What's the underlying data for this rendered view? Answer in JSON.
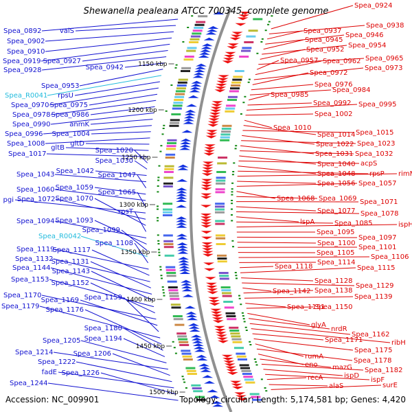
{
  "title": "Shewanella pealeana ATCC 700345, complete genome",
  "accession": "Accession: NC_009901",
  "topology": "Topology: circular; Length: 5,174,581 bp; Genes: 4,420",
  "colors": {
    "left_genes": "#1010d0",
    "right_genes": "#dd0000",
    "rna_genes": "#22bbdd",
    "backbone": "#909090"
  },
  "kbp_marks": [
    "1150 kbp",
    "1200 kbp",
    "1250 kbp",
    "1300 kbp",
    "1350 kbp",
    "1400 kbp",
    "1450 kbp",
    "1500 kbp"
  ],
  "left_labels": [
    {
      "text": "Spea_0892",
      "rna": false
    },
    {
      "text": "valS",
      "rna": false
    },
    {
      "text": "Spea_0902",
      "rna": false
    },
    {
      "text": "Spea_0910",
      "rna": false
    },
    {
      "text": "Spea_0919",
      "rna": false
    },
    {
      "text": "Spea_0927",
      "rna": false
    },
    {
      "text": "Spea_0928",
      "rna": false
    },
    {
      "text": "Spea_0942",
      "rna": false
    },
    {
      "text": "Spea_0953",
      "rna": false
    },
    {
      "text": "Spea_R0041",
      "rna": true
    },
    {
      "text": "rpsU",
      "rna": false
    },
    {
      "text": "Spea_0970",
      "rna": false
    },
    {
      "text": "Spea_0975",
      "rna": false
    },
    {
      "text": "Spea_0978",
      "rna": false
    },
    {
      "text": "Spea_0986",
      "rna": false
    },
    {
      "text": "Spea_0990",
      "rna": false
    },
    {
      "text": "anmK",
      "rna": false
    },
    {
      "text": "Spea_0996",
      "rna": false
    },
    {
      "text": "Spea_1004",
      "rna": false
    },
    {
      "text": "Spea_1008",
      "rna": false
    },
    {
      "text": "gltD",
      "rna": false
    },
    {
      "text": "gltB",
      "rna": false
    },
    {
      "text": "Spea_1017",
      "rna": false
    },
    {
      "text": "Spea_1020",
      "rna": false
    },
    {
      "text": "Spea_1030",
      "rna": false
    },
    {
      "text": "Spea_1042",
      "rna": false
    },
    {
      "text": "Spea_1043",
      "rna": false
    },
    {
      "text": "Spea_1047",
      "rna": false
    },
    {
      "text": "Spea_1059",
      "rna": false
    },
    {
      "text": "Spea_1060",
      "rna": false
    },
    {
      "text": "Spea_1065",
      "rna": false
    },
    {
      "text": "pgi",
      "rna": false
    },
    {
      "text": "Spea_1072",
      "rna": false
    },
    {
      "text": "Spea_1070",
      "rna": false
    },
    {
      "text": "rpsT",
      "rna": false
    },
    {
      "text": "Spea_1094",
      "rna": false
    },
    {
      "text": "Spea_1093",
      "rna": false
    },
    {
      "text": "Spea_1099",
      "rna": false
    },
    {
      "text": "Spea_R0042",
      "rna": true
    },
    {
      "text": "Spea_1108",
      "rna": false
    },
    {
      "text": "Spea_1119",
      "rna": false
    },
    {
      "text": "Spea_1117",
      "rna": false
    },
    {
      "text": "Spea_1132",
      "rna": false
    },
    {
      "text": "Spea_1131",
      "rna": false
    },
    {
      "text": "Spea_1144",
      "rna": false
    },
    {
      "text": "Spea_1143",
      "rna": false
    },
    {
      "text": "Spea_1153",
      "rna": false
    },
    {
      "text": "Spea_1152",
      "rna": false
    },
    {
      "text": "Spea_1170",
      "rna": false
    },
    {
      "text": "Spea_1169",
      "rna": false
    },
    {
      "text": "Spea_1159",
      "rna": false
    },
    {
      "text": "Spea_1179",
      "rna": false
    },
    {
      "text": "Spea_1176",
      "rna": false
    },
    {
      "text": "Spea_1180",
      "rna": false
    },
    {
      "text": "Spea_1194",
      "rna": false
    },
    {
      "text": "Spea_1205",
      "rna": false
    },
    {
      "text": "Spea_1214",
      "rna": false
    },
    {
      "text": "Spea_1206",
      "rna": false
    },
    {
      "text": "Spea_1222",
      "rna": false
    },
    {
      "text": "fadE",
      "rna": false
    },
    {
      "text": "Spea_1226",
      "rna": false
    },
    {
      "text": "Spea_1244",
      "rna": false
    }
  ],
  "right_labels": [
    "Spea_0924",
    "Spea_0938",
    "Spea_0937",
    "Spea_0946",
    "Spea_0945",
    "Spea_0954",
    "Spea_0952",
    "Spea_0965",
    "Spea_0957",
    "Spea_0962",
    "Spea_0973",
    "Spea_0972",
    "Spea_0976",
    "Spea_0984",
    "Spea_0985",
    "Spea_0992",
    "Spea_0995",
    "Spea_1002",
    "Spea_1010",
    "Spea_1014",
    "Spea_1015",
    "Spea_1022",
    "Spea_1023",
    "Spea_1031",
    "Spea_1032",
    "Spea_1040",
    "acpS",
    "Spea_1048",
    "rpsP",
    "rimM",
    "Spea_1056",
    "Spea_1057",
    "Spea_1068",
    "Spea_1069",
    "Spea_1071",
    "Spea_1077",
    "Spea_1078",
    "lspA",
    "Spea_1085",
    "ispH",
    "Spea_1095",
    "Spea_1097",
    "Spea_1100",
    "Spea_1101",
    "Spea_1105",
    "Spea_1106",
    "Spea_1114",
    "Spea_1118",
    "Spea_1115",
    "Spea_1128",
    "Spea_1129",
    "Spea_1142",
    "Spea_1138",
    "Spea_1139",
    "Spea_1151",
    "Spea_1150",
    "glyA",
    "nrdR",
    "Spea_1162",
    "ribH",
    "Spea_1171",
    "Spea_1175",
    "rumA",
    "Spea_1178",
    "eno",
    "mazG",
    "Spea_1182",
    "ispD",
    "ispF",
    "recA",
    "alaS",
    "surE"
  ]
}
